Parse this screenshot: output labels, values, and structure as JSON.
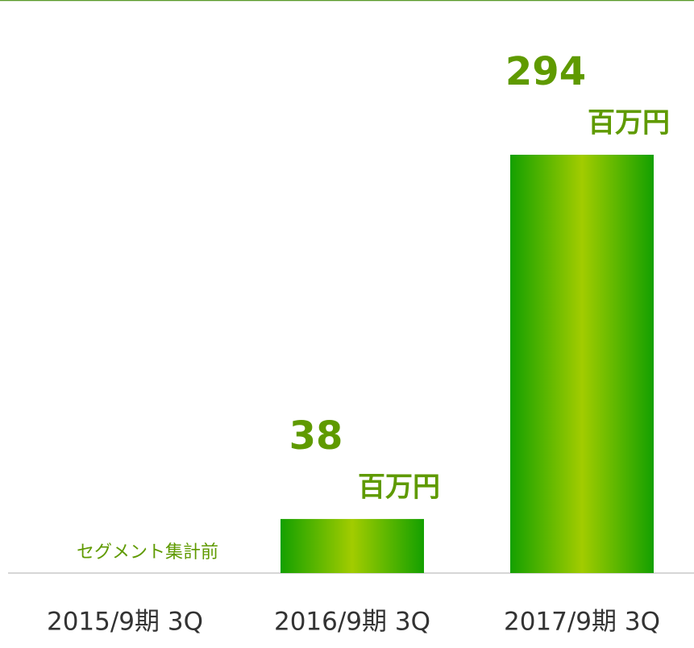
{
  "chart_data": {
    "type": "bar",
    "categories": [
      "2015/9期 3Q",
      "2016/9期 3Q",
      "2017/9期 3Q"
    ],
    "values": [
      null,
      38,
      294
    ],
    "unit": "百万円",
    "annotation": "セグメント集計前",
    "color": "#14a000",
    "ylim": [
      0,
      300
    ]
  }
}
